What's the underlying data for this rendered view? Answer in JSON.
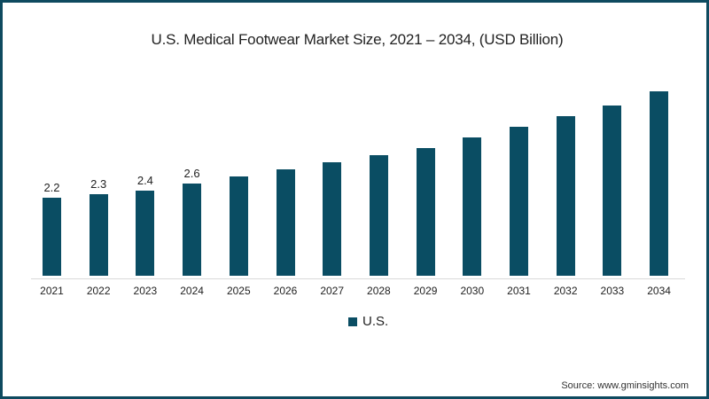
{
  "header": {
    "title": "U.S. Medical Footwear Market Size, 2021 – 2034, (USD Billion)"
  },
  "legend": {
    "label": "U.S.",
    "color": "#0a4d63"
  },
  "footer": {
    "source": "Source: www.gminsights.com"
  },
  "colors": {
    "bar": "#0a4d63",
    "frame": "#0e4a5f"
  },
  "chart_data": {
    "type": "bar",
    "title": "U.S. Medical Footwear Market Size, 2021 – 2034, (USD Billion)",
    "xlabel": "",
    "ylabel": "USD Billion",
    "categories": [
      "2021",
      "2022",
      "2023",
      "2024",
      "2025",
      "2026",
      "2027",
      "2028",
      "2029",
      "2030",
      "2031",
      "2032",
      "2033",
      "2034"
    ],
    "series": [
      {
        "name": "U.S.",
        "values": [
          2.2,
          2.3,
          2.4,
          2.6,
          2.8,
          3.0,
          3.2,
          3.4,
          3.6,
          3.9,
          4.2,
          4.5,
          4.8,
          5.2
        ]
      }
    ],
    "data_labels": [
      "2.2",
      "2.3",
      "2.4",
      "2.6",
      "",
      "",
      "",
      "",
      "",
      "",
      "",
      "",
      "",
      ""
    ],
    "ylim": [
      0,
      5.5
    ],
    "grid": false,
    "legend_position": "bottom"
  }
}
